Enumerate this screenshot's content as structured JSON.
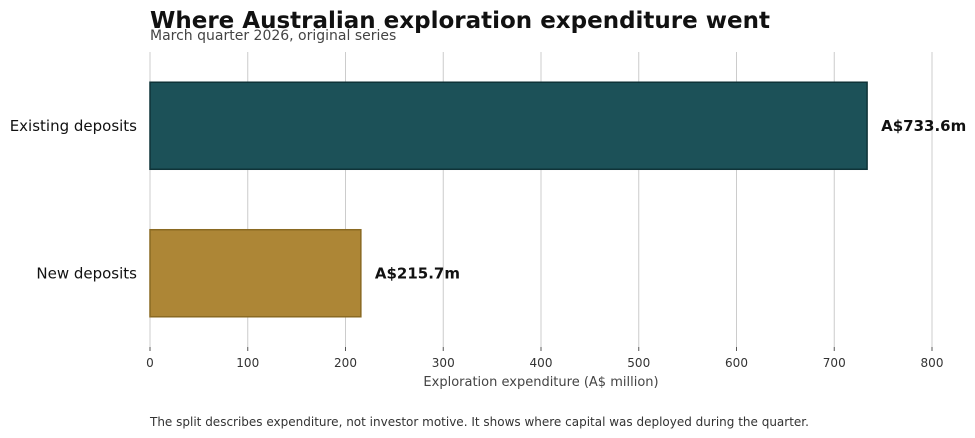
{
  "chart_data": {
    "type": "bar",
    "orientation": "horizontal",
    "title": "Where Australian exploration expenditure went",
    "subtitle": "March quarter 2026, original series",
    "categories": [
      "Existing deposits",
      "New deposits"
    ],
    "values": [
      733.6,
      215.7
    ],
    "data_labels": [
      "A$733.6m",
      "A$215.7m"
    ],
    "colors": [
      "#1c5158",
      "#ad8636"
    ],
    "edge_colors": [
      "#0f3338",
      "#8a6a22"
    ],
    "xlabel": "Exploration expenditure (A$ million)",
    "ylabel": "",
    "xlim": [
      0,
      800
    ],
    "xticks": [
      0,
      100,
      200,
      300,
      400,
      500,
      600,
      700,
      800
    ],
    "grid": "vertical"
  },
  "footnote": "The split describes expenditure, not investor motive. It shows where capital was deployed during the quarter."
}
